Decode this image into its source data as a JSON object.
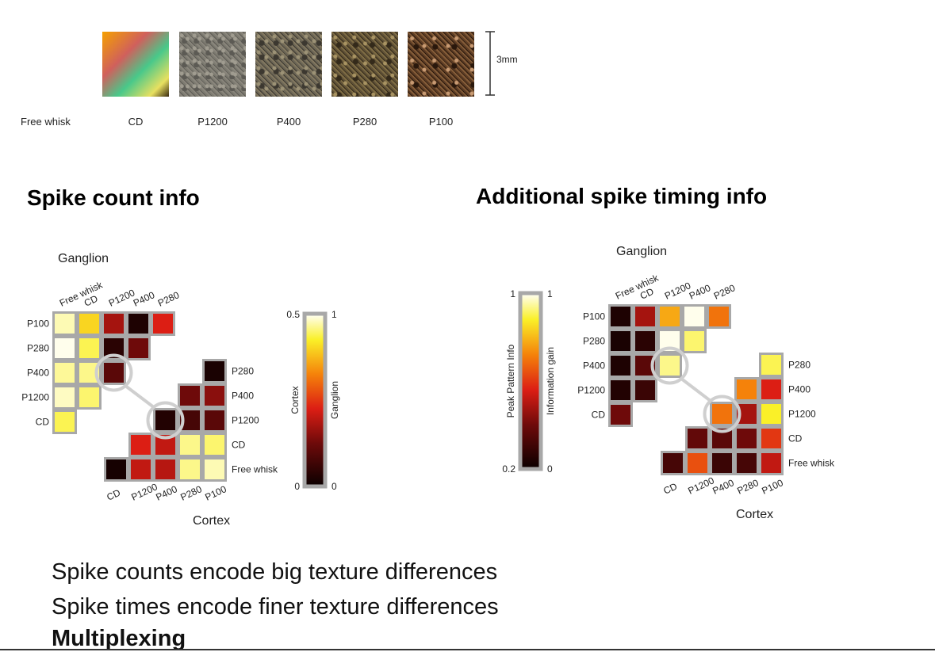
{
  "textures": {
    "row_label": "Free whisk",
    "items": [
      "CD",
      "P1200",
      "P400",
      "P280",
      "P100"
    ],
    "scale_label": "3mm",
    "colors": [
      [
        "#f5a000",
        "#d0605c",
        "#48c88a",
        "#e8e060"
      ],
      [
        "#7c7a70",
        "#a09c90",
        "#5c5a54",
        "#8a867c"
      ],
      [
        "#6b6555",
        "#9c9276",
        "#3c3830",
        "#827860"
      ],
      [
        "#5e5036",
        "#a89362",
        "#342a1a",
        "#7e6c44"
      ],
      [
        "#5c3c24",
        "#c89a72",
        "#2a180c",
        "#845c38"
      ]
    ]
  },
  "titles": {
    "left": "Spike count info",
    "right": "Additional spike timing info"
  },
  "conclusions": {
    "line1": "Spike counts encode big texture differences",
    "line2": "Spike times encode finer texture differences",
    "line3": "Multiplexing"
  },
  "chart_data": [
    {
      "type": "heatmap",
      "title": "Spike count info",
      "top_axis_label": "Ganglion",
      "bottom_axis_label": "Cortex",
      "colorbar": {
        "left_label": "Cortex",
        "right_label": "Ganglion",
        "left_ticks": [
          "0.5",
          "0"
        ],
        "right_ticks": [
          "1",
          "0"
        ],
        "range": [
          0,
          1
        ]
      },
      "ganglion": {
        "col_labels": [
          "Free whisk",
          "CD",
          "P1200",
          "P400",
          "P280"
        ],
        "row_labels": [
          "P100",
          "P280",
          "P400",
          "P1200",
          "CD"
        ],
        "values": [
          [
            0.95,
            0.8,
            0.35,
            0.05,
            0.45
          ],
          [
            0.99,
            0.88,
            0.08,
            0.25,
            null
          ],
          [
            0.93,
            0.92,
            0.2,
            null,
            null
          ],
          [
            0.96,
            0.9,
            null,
            null,
            null
          ],
          [
            0.88,
            null,
            null,
            null,
            null
          ]
        ]
      },
      "cortex": {
        "col_labels": [
          "CD",
          "P1200",
          "P400",
          "P280",
          "P100"
        ],
        "row_labels": [
          "P280",
          "P400",
          "P1200",
          "CD",
          "Free whisk"
        ],
        "values": [
          [
            null,
            null,
            null,
            null,
            0.04
          ],
          [
            null,
            null,
            null,
            0.25,
            0.3
          ],
          [
            null,
            null,
            0.06,
            0.15,
            0.2
          ],
          [
            null,
            0.45,
            0.4,
            0.92,
            0.9
          ],
          [
            0.03,
            0.4,
            0.38,
            0.92,
            0.95
          ]
        ]
      },
      "highlight": {
        "ganglion_cell": "P400 × P1200",
        "cortex_cell": "P1200 × P400"
      }
    },
    {
      "type": "heatmap",
      "title": "Additional spike timing info",
      "top_axis_label": "Ganglion",
      "bottom_axis_label": "Cortex",
      "colorbar": {
        "left_label": "Peak Pattern Info",
        "right_label": "Information gain",
        "left_ticks": [
          "1",
          "0.2"
        ],
        "right_ticks": [
          "1",
          "0"
        ],
        "range": [
          0,
          1
        ]
      },
      "ganglion": {
        "col_labels": [
          "Free whisk",
          "CD",
          "P1200",
          "P400",
          "P280"
        ],
        "row_labels": [
          "P100",
          "P280",
          "P400",
          "P1200",
          "CD"
        ],
        "values": [
          [
            0.05,
            0.35,
            0.72,
            0.99,
            0.62
          ],
          [
            0.04,
            0.08,
            0.99,
            0.9,
            null
          ],
          [
            0.05,
            0.2,
            0.92,
            null,
            null
          ],
          [
            0.06,
            0.12,
            null,
            null,
            null
          ],
          [
            0.25,
            null,
            null,
            null,
            null
          ]
        ]
      },
      "cortex": {
        "col_labels": [
          "CD",
          "P1200",
          "P400",
          "P280",
          "P100"
        ],
        "row_labels": [
          "P280",
          "P400",
          "P1200",
          "CD",
          "Free whisk"
        ],
        "values": [
          [
            null,
            null,
            null,
            null,
            0.88
          ],
          [
            null,
            null,
            null,
            0.65,
            0.45
          ],
          [
            null,
            null,
            0.62,
            0.35,
            0.85
          ],
          [
            null,
            0.22,
            0.2,
            0.25,
            0.5
          ],
          [
            0.15,
            0.55,
            0.12,
            0.15,
            0.4
          ]
        ]
      },
      "highlight": {
        "ganglion_cell": "P400 × P1200",
        "cortex_cell": "P1200 × P400"
      }
    }
  ]
}
